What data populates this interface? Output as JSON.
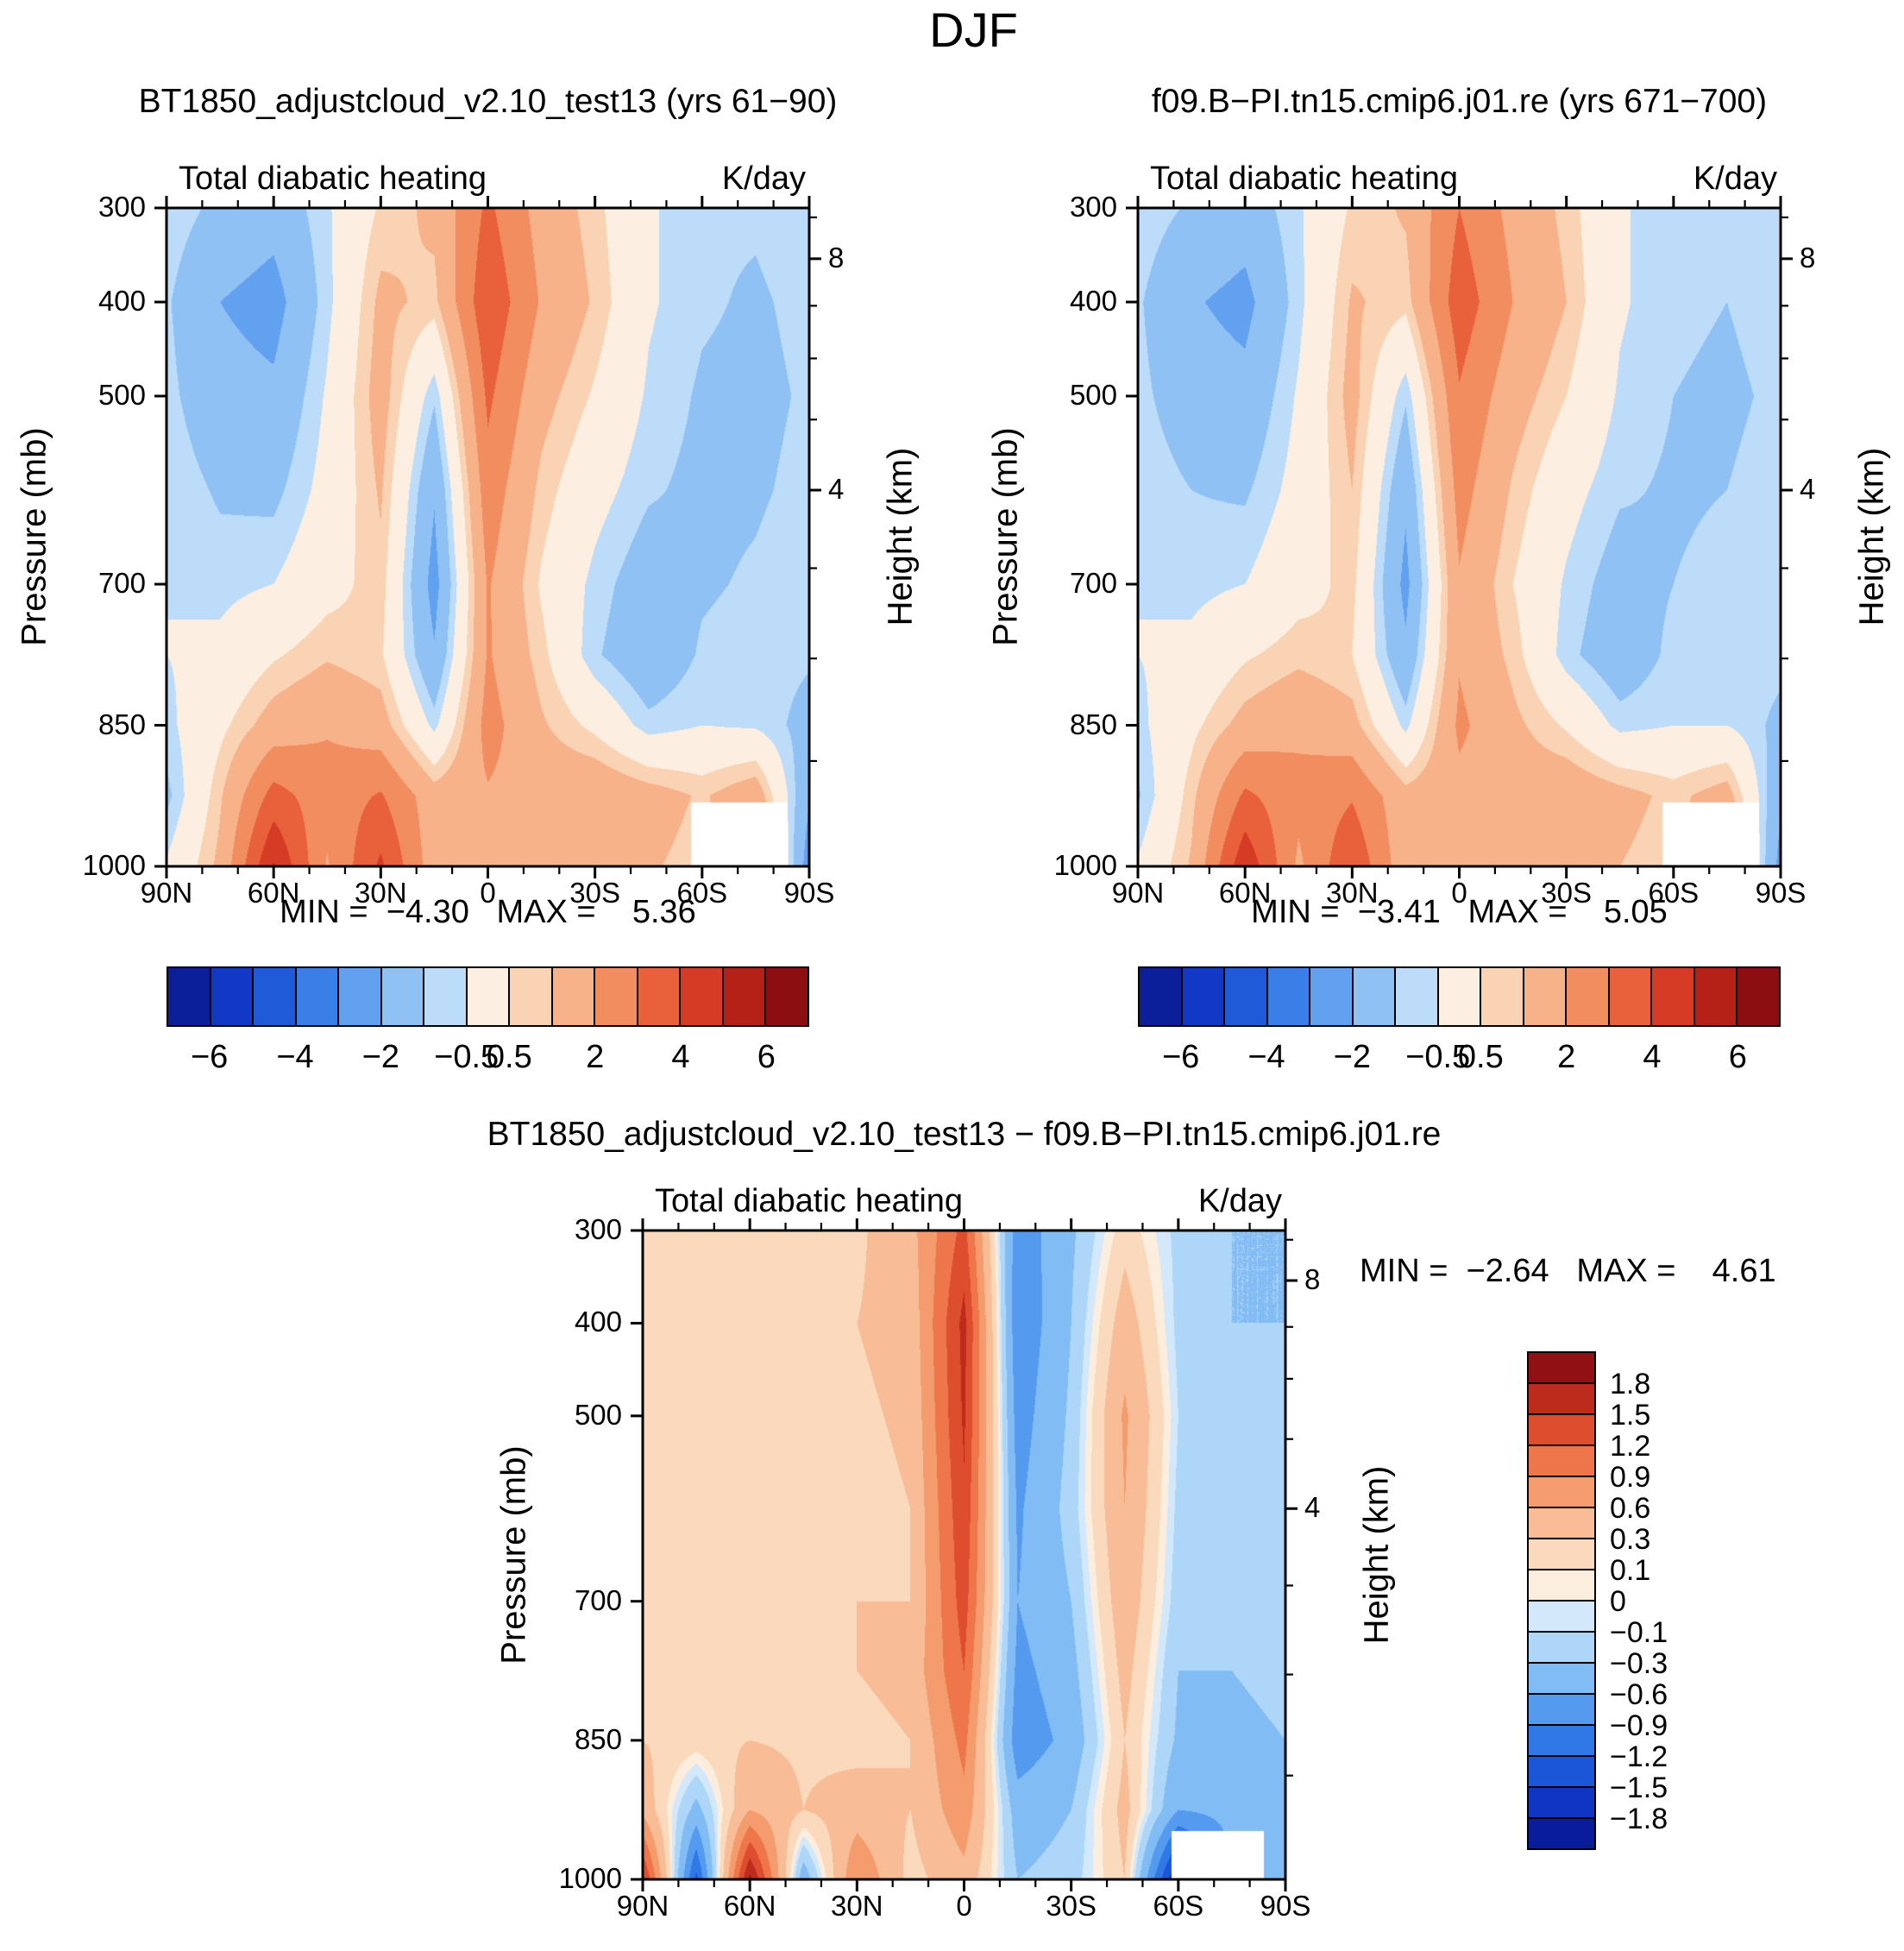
{
  "title": "DJF",
  "panels": [
    {
      "title": "BT1850_adjustcloud_v2.10_test13 (yrs 61−90)",
      "subtitle_left": "Total diabatic heating",
      "subtitle_right": "K/day",
      "stats_line": "MIN =  −4.30   MAX =    5.36"
    },
    {
      "title": "f09.B−PI.tn15.cmip6.j01.re (yrs 671−700)",
      "subtitle_left": "Total diabatic heating",
      "subtitle_right": "K/day",
      "stats_line": "MIN =  −3.41   MAX =    5.05"
    },
    {
      "title": "BT1850_adjustcloud_v2.10_test13 − f09.B−PI.tn15.cmip6.j01.re",
      "subtitle_left": "Total diabatic heating",
      "subtitle_right": "K/day",
      "stats_line": "MIN =  −2.64   MAX =    4.61"
    }
  ],
  "axes": {
    "pressure_label": "Pressure (mb)",
    "height_label": "Height (km)",
    "pressure_ticks": [
      300,
      400,
      500,
      700,
      850,
      1000
    ],
    "height_ticks": [
      {
        "label": "8",
        "mb": 354
      },
      {
        "label": "4",
        "mb": 600
      }
    ],
    "height_minor_mb": [
      888,
      779,
      683,
      525,
      460,
      404,
      310
    ],
    "lat_ticks": [
      {
        "label": "90N",
        "lat": 90
      },
      {
        "label": "60N",
        "lat": 60
      },
      {
        "label": "30N",
        "lat": 30
      },
      {
        "label": "0",
        "lat": 0
      },
      {
        "label": "30S",
        "lat": -30
      },
      {
        "label": "60S",
        "lat": -60
      },
      {
        "label": "90S",
        "lat": -90
      }
    ],
    "lat_minor_step": 10
  },
  "colorbar_main": {
    "levels": [
      -6,
      -5,
      -4,
      -3,
      -2,
      -1,
      -0.5,
      0.5,
      1,
      2,
      3,
      4,
      5,
      6
    ],
    "palette": [
      "#0b1f9b",
      "#1238c6",
      "#1f5ad9",
      "#3a7ee8",
      "#62a1f0",
      "#8fc1f5",
      "#bcdcf9",
      "#fcefe1",
      "#fad3b5",
      "#f7b28a",
      "#f28d60",
      "#e9613b",
      "#d63b25",
      "#b52017",
      "#8d0e11"
    ],
    "labels": [
      {
        "text": "−6",
        "value": -6
      },
      {
        "text": "−4",
        "value": -4
      },
      {
        "text": "−2",
        "value": -2
      },
      {
        "text": "−0.5",
        "value": -0.5
      },
      {
        "text": "0.5",
        "value": 0.5
      },
      {
        "text": "2",
        "value": 2
      },
      {
        "text": "4",
        "value": 4
      },
      {
        "text": "6",
        "value": 6
      }
    ]
  },
  "colorbar_diff": {
    "levels": [
      -1.8,
      -1.5,
      -1.2,
      -0.9,
      -0.6,
      -0.3,
      -0.1,
      0,
      0.1,
      0.3,
      0.6,
      0.9,
      1.2,
      1.5,
      1.8
    ],
    "palette": [
      "#081c9c",
      "#0f35c2",
      "#1b55d8",
      "#2f78e6",
      "#549bf0",
      "#82bcf4",
      "#aed6f8",
      "#d3e8fb",
      "#fceede",
      "#fad9bc",
      "#f8bd96",
      "#f49c6d",
      "#ee764a",
      "#de4d2e",
      "#bd2b1c",
      "#901013"
    ],
    "labels": [
      "1.8",
      "1.5",
      "1.2",
      "0.9",
      "0.6",
      "0.3",
      "0.1",
      "0",
      "−0.1",
      "−0.3",
      "−0.6",
      "−0.9",
      "−1.2",
      "−1.5",
      "−1.8"
    ]
  },
  "chart_data": [
    {
      "type": "heatmap",
      "title": "BT1850_adjustcloud_v2.10_test13 (yrs 61−90)",
      "variable": "Total diabatic heating",
      "units": "K/day",
      "x_name": "latitude_deg",
      "y_name": "pressure_mb",
      "x": [
        90,
        75,
        60,
        45,
        30,
        15,
        0,
        -15,
        -30,
        -45,
        -60,
        -75,
        -90
      ],
      "y": [
        300,
        400,
        500,
        600,
        700,
        775,
        850,
        925,
        1000
      ],
      "values": [
        [
          -0.6,
          -1.2,
          -1.6,
          -0.6,
          0.6,
          1.2,
          3.2,
          1.6,
          0.7,
          -0.4,
          -0.9,
          -0.9,
          -0.6
        ],
        [
          -0.9,
          -2.0,
          -2.4,
          -0.7,
          1.2,
          0.8,
          3.8,
          1.9,
          0.9,
          -0.4,
          -0.9,
          -1.1,
          -0.8
        ],
        [
          -0.8,
          -1.6,
          -1.8,
          -0.4,
          1.4,
          -0.9,
          3.2,
          1.3,
          0.4,
          -0.6,
          -1.1,
          -1.2,
          -0.9
        ],
        [
          -0.6,
          -1.1,
          -1.2,
          -0.2,
          1.1,
          -1.9,
          2.6,
          0.8,
          -0.2,
          -0.9,
          -1.2,
          -1.1,
          -0.8
        ],
        [
          -0.5,
          -0.7,
          -0.5,
          0.2,
          0.8,
          -2.4,
          2.1,
          0.4,
          -0.7,
          -1.5,
          -1.1,
          -0.9,
          -0.6
        ],
        [
          -0.5,
          -0.3,
          0.4,
          0.9,
          0.6,
          -1.9,
          2.1,
          0.7,
          -0.9,
          -1.7,
          -0.9,
          -0.7,
          -0.9
        ],
        [
          -0.7,
          0.3,
          1.4,
          1.9,
          1.4,
          -0.7,
          2.4,
          1.1,
          0.3,
          -0.8,
          -0.5,
          -0.6,
          -1.3
        ],
        [
          -1.2,
          0.9,
          3.4,
          2.4,
          3.1,
          1.4,
          1.9,
          1.6,
          1.8,
          1.4,
          0.9,
          1.6,
          -1.9
        ],
        [
          -0.4,
          1.2,
          5.1,
          1.9,
          4.2,
          1.4,
          1.1,
          1.1,
          1.5,
          1.1,
          0.7,
          2.8,
          -2.6
        ]
      ],
      "levels_ref": "colorbar_main",
      "min": -4.3,
      "max": 5.36,
      "surface_mask": {
        "lat": [
          -84,
          -57
        ],
        "p": [
          932,
          1000
        ]
      }
    },
    {
      "type": "heatmap",
      "title": "f09.B−PI.tn15.cmip6.j01.re (yrs 671−700)",
      "variable": "Total diabatic heating",
      "units": "K/day",
      "x_name": "latitude_deg",
      "y_name": "pressure_mb",
      "x": [
        90,
        75,
        60,
        45,
        30,
        15,
        0,
        -15,
        -30,
        -45,
        -60,
        -75,
        -90
      ],
      "y": [
        300,
        400,
        500,
        600,
        700,
        775,
        850,
        925,
        1000
      ],
      "values": [
        [
          -0.6,
          -1.1,
          -1.5,
          -0.6,
          0.6,
          1.1,
          3.0,
          1.7,
          0.8,
          -0.4,
          -0.9,
          -0.9,
          -0.6
        ],
        [
          -0.9,
          -1.9,
          -2.3,
          -0.7,
          1.1,
          0.7,
          3.6,
          2.0,
          1.0,
          -0.4,
          -0.9,
          -1.0,
          -0.8
        ],
        [
          -0.8,
          -1.5,
          -1.7,
          -0.4,
          1.3,
          -0.9,
          2.9,
          1.4,
          0.5,
          -0.6,
          -1.0,
          -1.1,
          -0.9
        ],
        [
          -0.6,
          -1.0,
          -1.1,
          -0.2,
          1.0,
          -1.8,
          2.4,
          0.9,
          -0.2,
          -0.9,
          -1.1,
          -1.0,
          -0.8
        ],
        [
          -0.5,
          -0.7,
          -0.5,
          0.2,
          0.7,
          -2.3,
          1.9,
          0.5,
          -0.6,
          -1.4,
          -1.0,
          -0.8,
          -0.6
        ],
        [
          -0.5,
          -0.3,
          0.4,
          0.8,
          0.5,
          -1.8,
          1.9,
          0.8,
          -0.8,
          -1.6,
          -0.8,
          -0.6,
          -0.8
        ],
        [
          -0.7,
          0.3,
          1.3,
          1.8,
          1.3,
          -0.7,
          2.2,
          1.2,
          0.4,
          -0.7,
          -0.5,
          -0.5,
          -1.2
        ],
        [
          -1.1,
          0.8,
          3.2,
          2.3,
          2.9,
          1.3,
          1.7,
          1.5,
          1.7,
          1.3,
          0.8,
          1.4,
          -1.8
        ],
        [
          -0.4,
          1.1,
          4.8,
          1.8,
          3.9,
          1.3,
          1.0,
          1.0,
          1.4,
          1.0,
          0.6,
          2.5,
          -2.4
        ]
      ],
      "levels_ref": "colorbar_main",
      "min": -3.41,
      "max": 5.05,
      "surface_mask": {
        "lat": [
          -84,
          -57
        ],
        "p": [
          932,
          1000
        ]
      }
    },
    {
      "type": "heatmap",
      "title": "BT1850_adjustcloud_v2.10_test13 − f09.B−PI.tn15.cmip6.j01.re",
      "variable": "Total diabatic heating",
      "units": "K/day",
      "x_name": "latitude_deg",
      "y_name": "pressure_mb",
      "x": [
        90,
        75,
        60,
        45,
        30,
        15,
        0,
        -15,
        -30,
        -45,
        -60,
        -75,
        -90
      ],
      "y": [
        300,
        400,
        500,
        600,
        700,
        775,
        850,
        925,
        1000
      ],
      "values": [
        [
          0.2,
          0.15,
          0.2,
          0.2,
          0.25,
          0.5,
          1.3,
          -0.8,
          -0.35,
          0.2,
          -0.15,
          -0.3,
          -0.3
        ],
        [
          0.2,
          0.2,
          0.15,
          0.2,
          0.3,
          0.4,
          1.6,
          -0.85,
          -0.3,
          0.45,
          -0.15,
          -0.3,
          -0.3
        ],
        [
          0.15,
          0.2,
          0.2,
          0.15,
          0.25,
          0.35,
          1.55,
          -0.75,
          -0.25,
          0.65,
          -0.1,
          -0.25,
          -0.3
        ],
        [
          0.2,
          0.15,
          0.2,
          0.2,
          0.2,
          0.3,
          1.45,
          -0.65,
          -0.2,
          0.6,
          -0.15,
          -0.2,
          -0.25
        ],
        [
          0.15,
          0.2,
          0.25,
          0.15,
          0.3,
          0.3,
          1.35,
          -0.6,
          -0.3,
          0.5,
          -0.2,
          -0.25,
          -0.2
        ],
        [
          0.2,
          0.25,
          0.2,
          0.2,
          0.3,
          0.4,
          1.2,
          -0.7,
          -0.4,
          0.4,
          -0.3,
          -0.3,
          -0.2
        ],
        [
          0.3,
          0.2,
          0.3,
          0.25,
          0.2,
          0.3,
          1.0,
          -0.8,
          -0.5,
          0.3,
          -0.35,
          -0.4,
          -0.3
        ],
        [
          0.5,
          -0.4,
          0.6,
          0.3,
          0.45,
          0.3,
          0.8,
          -0.45,
          -0.3,
          0.4,
          -0.6,
          -0.5,
          -0.3
        ],
        [
          1.6,
          -1.3,
          1.9,
          -0.5,
          0.9,
          0.2,
          0.5,
          -0.3,
          -0.2,
          0.3,
          -1.9,
          -0.6,
          -0.4
        ]
      ],
      "levels_ref": "colorbar_diff",
      "min": -2.64,
      "max": 4.61,
      "surface_mask": {
        "lat": [
          -84,
          -58
        ],
        "p": [
          948,
          1000
        ]
      }
    }
  ]
}
